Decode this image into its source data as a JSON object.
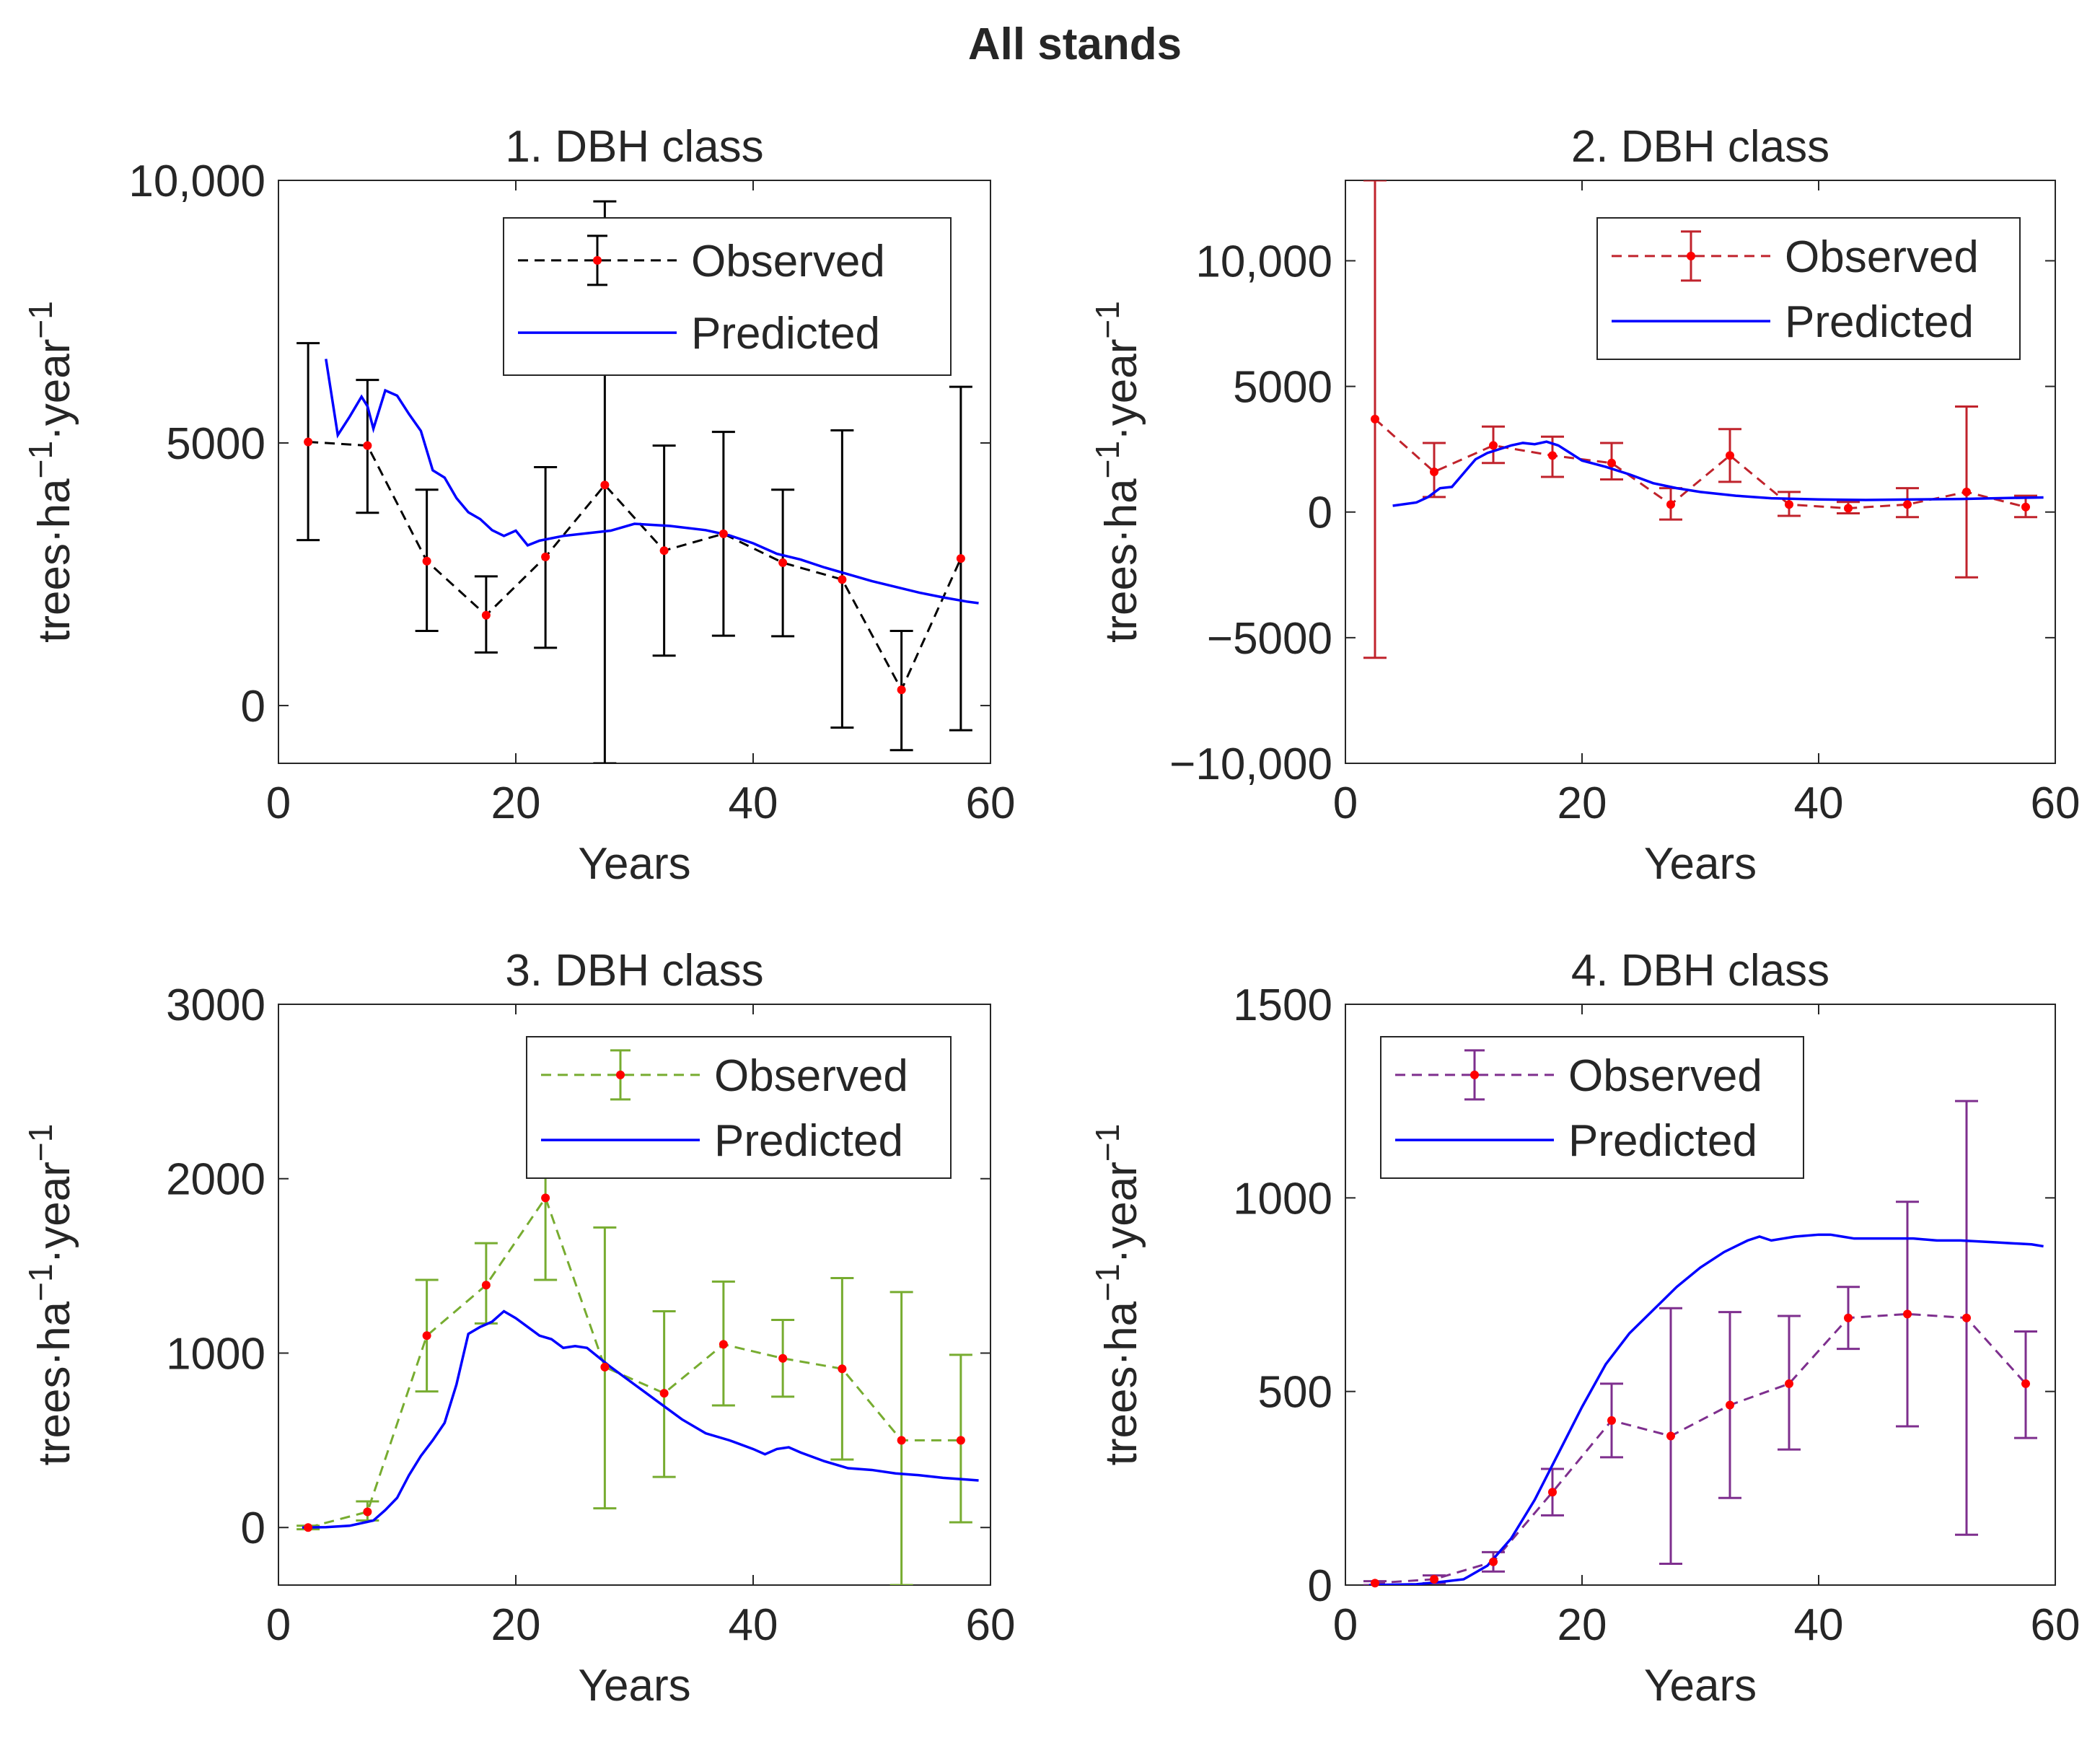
{
  "figure_title": "All stands",
  "colors": {
    "predicted": "#0000ff",
    "marker": "#ff0000",
    "axis": "#262626",
    "panel1": "#000000",
    "panel2": "#c0232c",
    "panel3": "#77ac30",
    "panel4": "#7e2f8e"
  },
  "chart_data": [
    {
      "type": "line",
      "title": "1. DBH class",
      "xlabel": "Years",
      "ylabel": "trees·ha−1·year−1",
      "xlim": [
        0,
        60
      ],
      "ylim": [
        -1100,
        10000
      ],
      "xticks": [
        0,
        20,
        40,
        60
      ],
      "xtick_labels": [
        "0",
        "20",
        "40",
        "60"
      ],
      "yticks": [
        0,
        5000,
        10000
      ],
      "ytick_labels": [
        "0",
        "5000",
        "10,000"
      ],
      "legend": {
        "placement": "top-right",
        "entries": [
          "Observed",
          "Predicted"
        ]
      },
      "observed": {
        "name": "Observed",
        "color_key": "panel1",
        "x": [
          2.5,
          7.5,
          12.5,
          17.5,
          22.5,
          27.5,
          32.5,
          37.5,
          42.5,
          47.5,
          52.5,
          57.5
        ],
        "y": [
          5020,
          4950,
          2750,
          1720,
          2830,
          4200,
          2950,
          3270,
          2720,
          2400,
          300,
          2800
        ],
        "err_low": [
          3150,
          3670,
          1420,
          1010,
          1100,
          -1100,
          950,
          1330,
          1320,
          -420,
          -850,
          -470
        ],
        "err_high": [
          6900,
          6200,
          4110,
          2460,
          4540,
          9600,
          4950,
          5210,
          4110,
          5240,
          1420,
          6070
        ]
      },
      "predicted": {
        "name": "Predicted",
        "x": [
          4,
          5,
          6,
          7,
          7.5,
          8,
          9,
          10,
          11,
          12,
          13,
          14,
          15,
          16,
          17,
          18,
          19,
          20,
          21,
          22,
          24,
          26,
          28,
          30,
          33,
          36,
          38,
          40,
          42,
          44,
          46,
          48,
          50,
          52,
          54,
          56,
          58,
          59
        ],
        "y": [
          6600,
          5150,
          5500,
          5880,
          5700,
          5270,
          6000,
          5900,
          5550,
          5230,
          4480,
          4340,
          3950,
          3680,
          3550,
          3340,
          3230,
          3330,
          3050,
          3140,
          3230,
          3280,
          3330,
          3460,
          3420,
          3340,
          3240,
          3090,
          2890,
          2780,
          2630,
          2500,
          2370,
          2260,
          2150,
          2060,
          1980,
          1950
        ]
      }
    },
    {
      "type": "line",
      "title": "2. DBH class",
      "xlabel": "Years",
      "ylabel": "trees·ha−1·year−1",
      "xlim": [
        0,
        60
      ],
      "ylim": [
        -10000,
        13200
      ],
      "xticks": [
        0,
        20,
        40,
        60
      ],
      "xtick_labels": [
        "0",
        "20",
        "40",
        "60"
      ],
      "yticks": [
        -10000,
        -5000,
        0,
        5000,
        10000
      ],
      "ytick_labels": [
        "−10,000",
        "−5000",
        "0",
        "5000",
        "10,000"
      ],
      "legend": {
        "placement": "top-right",
        "entries": [
          "Observed",
          "Predicted"
        ]
      },
      "observed": {
        "name": "Observed",
        "color_key": "panel2",
        "x": [
          2.5,
          7.5,
          12.5,
          17.5,
          22.5,
          27.5,
          32.5,
          37.5,
          42.5,
          47.5,
          52.5,
          57.5
        ],
        "y": [
          3700,
          1600,
          2650,
          2250,
          1950,
          300,
          2250,
          300,
          150,
          300,
          800,
          200
        ],
        "err_low": [
          -5800,
          600,
          1950,
          1400,
          1300,
          -300,
          1200,
          -150,
          -50,
          -200,
          -2600,
          -200
        ],
        "err_high": [
          13200,
          2750,
          3400,
          3000,
          2750,
          950,
          3300,
          800,
          400,
          950,
          4200,
          650
        ]
      },
      "predicted": {
        "name": "Predicted",
        "x": [
          4,
          6,
          7,
          8,
          9,
          10,
          11,
          12,
          14,
          15,
          16,
          17,
          18,
          19,
          20,
          22,
          24,
          26,
          28,
          30,
          33,
          36,
          40,
          44,
          48,
          52,
          56,
          59
        ],
        "y": [
          250,
          380,
          600,
          950,
          1000,
          1550,
          2100,
          2350,
          2650,
          2750,
          2700,
          2800,
          2650,
          2350,
          2050,
          1800,
          1500,
          1150,
          950,
          800,
          650,
          550,
          500,
          480,
          500,
          520,
          560,
          580
        ]
      }
    },
    {
      "type": "line",
      "title": "3. DBH class",
      "xlabel": "Years",
      "ylabel": "trees·ha−1·year−1",
      "xlim": [
        0,
        60
      ],
      "ylim": [
        -330,
        3000
      ],
      "xticks": [
        0,
        20,
        40,
        60
      ],
      "xtick_labels": [
        "0",
        "20",
        "40",
        "60"
      ],
      "yticks": [
        0,
        1000,
        2000,
        3000
      ],
      "ytick_labels": [
        "0",
        "1000",
        "2000",
        "3000"
      ],
      "legend": {
        "placement": "top-right",
        "entries": [
          "Observed",
          "Predicted"
        ]
      },
      "observed": {
        "name": "Observed",
        "color_key": "panel3",
        "x": [
          2.5,
          7.5,
          12.5,
          17.5,
          22.5,
          27.5,
          32.5,
          37.5,
          42.5,
          47.5,
          52.5,
          57.5
        ],
        "y": [
          0,
          90,
          1100,
          1390,
          1890,
          920,
          770,
          1050,
          970,
          910,
          500,
          500
        ],
        "err_low": [
          -10,
          40,
          780,
          1170,
          1420,
          110,
          290,
          700,
          750,
          390,
          -330,
          30
        ],
        "err_high": [
          10,
          150,
          1420,
          1630,
          2360,
          1720,
          1240,
          1410,
          1190,
          1430,
          1350,
          990
        ]
      },
      "predicted": {
        "name": "Predicted",
        "x": [
          2,
          4,
          6,
          8,
          9,
          10,
          11,
          12,
          13,
          14,
          15,
          16,
          17,
          18,
          19,
          20,
          21,
          22,
          23,
          24,
          25,
          26,
          28,
          30,
          32,
          34,
          36,
          38,
          40,
          41,
          42,
          43,
          44,
          46,
          48,
          50,
          52,
          54,
          56,
          58,
          59
        ],
        "y": [
          0,
          2,
          10,
          40,
          100,
          170,
          300,
          410,
          500,
          600,
          820,
          1110,
          1150,
          1180,
          1240,
          1200,
          1150,
          1100,
          1080,
          1030,
          1040,
          1030,
          920,
          820,
          720,
          620,
          540,
          500,
          450,
          420,
          450,
          460,
          430,
          380,
          340,
          330,
          310,
          300,
          285,
          275,
          270
        ]
      }
    },
    {
      "type": "line",
      "title": "4. DBH class",
      "xlabel": "Years",
      "ylabel": "trees·ha−1·year−1",
      "xlim": [
        0,
        60
      ],
      "ylim": [
        0,
        1500
      ],
      "xticks": [
        0,
        20,
        40,
        60
      ],
      "xtick_labels": [
        "0",
        "20",
        "40",
        "60"
      ],
      "yticks": [
        0,
        500,
        1000,
        1500
      ],
      "ytick_labels": [
        "0",
        "500",
        "1000",
        "1500"
      ],
      "legend": {
        "placement": "top-left",
        "entries": [
          "Observed",
          "Predicted"
        ]
      },
      "observed": {
        "name": "Observed",
        "color_key": "panel4",
        "x": [
          2.5,
          7.5,
          12.5,
          17.5,
          22.5,
          27.5,
          32.5,
          37.5,
          42.5,
          47.5,
          52.5,
          57.5
        ],
        "y": [
          5,
          15,
          60,
          240,
          425,
          385,
          465,
          520,
          690,
          700,
          690,
          520
        ],
        "err_low": [
          0,
          5,
          35,
          180,
          330,
          55,
          225,
          350,
          610,
          410,
          130,
          380
        ],
        "err_high": [
          10,
          25,
          85,
          300,
          520,
          715,
          705,
          695,
          770,
          990,
          1250,
          655
        ]
      },
      "predicted": {
        "name": "Predicted",
        "x": [
          2,
          6,
          8,
          10,
          12,
          14,
          16,
          18,
          20,
          22,
          24,
          26,
          28,
          30,
          32,
          34,
          35,
          36,
          37,
          38,
          40,
          41,
          42,
          43,
          44,
          46,
          48,
          50,
          52,
          55,
          58,
          59
        ],
        "y": [
          0,
          2,
          8,
          15,
          50,
          120,
          220,
          340,
          460,
          570,
          650,
          710,
          770,
          820,
          860,
          890,
          900,
          890,
          895,
          900,
          905,
          905,
          900,
          895,
          895,
          895,
          895,
          890,
          890,
          885,
          880,
          875
        ]
      }
    }
  ]
}
